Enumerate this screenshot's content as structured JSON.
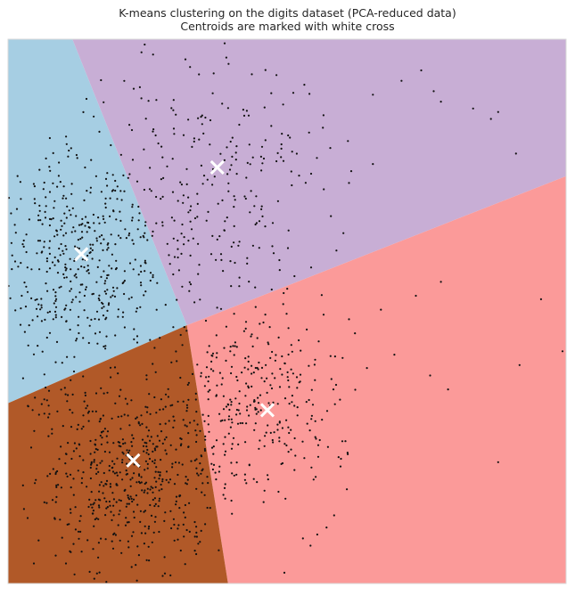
{
  "chart_data": {
    "type": "scatter",
    "title": "K-means clustering on the digits dataset (PCA-reduced data)",
    "subtitle": "Centroids are marked with white cross",
    "xlabel": "",
    "ylabel": "",
    "xlim": [
      -7.5,
      8.1
    ],
    "ylim": [
      -8.6,
      7.1
    ],
    "grid": false,
    "axes_visible": false,
    "regions": [
      {
        "name": "",
        "color": "#a6cee3"
      },
      {
        "name": "",
        "color": "#c8aed5"
      },
      {
        "name": "",
        "color": "#fb9a99"
      },
      {
        "name": "",
        "color": "#b15928"
      }
    ],
    "region_boundaries": [
      {
        "from": [
          -7.5,
          -3.4
        ],
        "to": [
          -2.5,
          -1.15
        ]
      },
      {
        "from": [
          -2.5,
          -1.15
        ],
        "to": [
          -5.7,
          7.1
        ]
      },
      {
        "from": [
          -2.5,
          -1.15
        ],
        "to": [
          8.1,
          3.15
        ]
      },
      {
        "from": [
          -2.5,
          -1.15
        ],
        "to": [
          -1.35,
          -8.6
        ]
      }
    ],
    "centroids": [
      {
        "x": -5.45,
        "y": 0.9
      },
      {
        "x": -1.65,
        "y": 3.4
      },
      {
        "x": -4.0,
        "y": -5.05
      },
      {
        "x": -0.25,
        "y": -3.6
      }
    ],
    "clusters": [
      {
        "cx": -5.5,
        "cy": 0.8,
        "sx": 1.15,
        "sy": 1.75,
        "n": 430,
        "seed": 11
      },
      {
        "cx": -2.0,
        "cy": 3.0,
        "sx": 1.6,
        "sy": 1.9,
        "n": 280,
        "seed": 23
      },
      {
        "cx": -4.1,
        "cy": -5.3,
        "sx": 1.25,
        "sy": 1.45,
        "n": 560,
        "seed": 37
      },
      {
        "cx": -0.6,
        "cy": -3.5,
        "sx": 1.3,
        "sy": 1.55,
        "n": 330,
        "seed": 51
      }
    ],
    "outliers": [
      {
        "x": 3.5,
        "y": 5.9
      },
      {
        "x": 4.6,
        "y": 5.3
      },
      {
        "x": 2.7,
        "y": 5.5
      },
      {
        "x": 4.4,
        "y": 5.6
      },
      {
        "x": 4.05,
        "y": 6.2
      },
      {
        "x": 5.5,
        "y": 5.1
      },
      {
        "x": 6.0,
        "y": 4.8
      },
      {
        "x": 6.2,
        "y": 5.0
      },
      {
        "x": 6.7,
        "y": 3.8
      },
      {
        "x": 7.4,
        "y": -0.4
      },
      {
        "x": 8.0,
        "y": -1.9
      },
      {
        "x": 6.8,
        "y": -2.3
      },
      {
        "x": 6.2,
        "y": -5.1
      },
      {
        "x": 4.8,
        "y": -3.0
      },
      {
        "x": 4.3,
        "y": -2.6
      },
      {
        "x": 3.9,
        "y": -0.3
      },
      {
        "x": 4.6,
        "y": 0.1
      },
      {
        "x": 3.3,
        "y": -2.0
      },
      {
        "x": 2.7,
        "y": 3.5
      }
    ]
  }
}
